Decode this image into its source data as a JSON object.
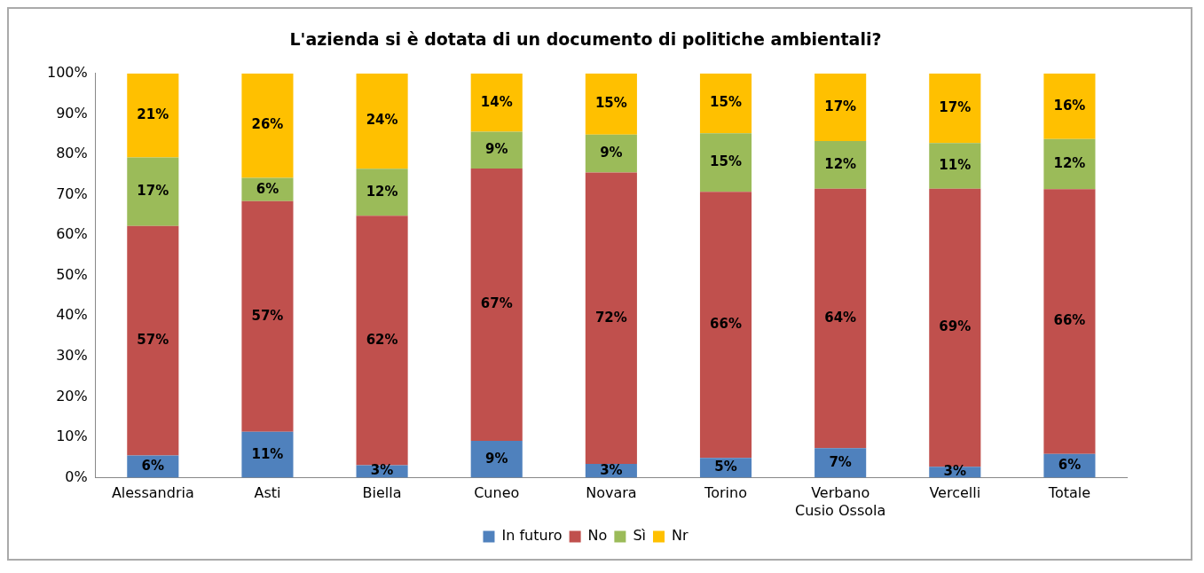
{
  "chart_data": {
    "type": "bar",
    "title": "L'azienda si è dotata di un documento di politiche ambientali?",
    "categories": [
      "Alessandria",
      "Asti",
      "Biella",
      "Cuneo",
      "Novara",
      "Torino",
      "Verbano Cusio Ossola",
      "Vercelli",
      "Totale"
    ],
    "stacked": true,
    "series": [
      {
        "name": "In futuro",
        "color": "#4f81bd",
        "values": [
          5.5,
          11.4,
          3.1,
          9.1,
          3.4,
          4.9,
          7.3,
          2.7,
          5.9
        ],
        "value_labels": [
          "6%",
          "11%",
          "3%",
          "9%",
          "3%",
          "5%",
          "7%",
          "3%",
          "6%"
        ]
      },
      {
        "name": "No",
        "color": "#c0504d",
        "values": [
          56.8,
          57.0,
          61.7,
          67.4,
          72.1,
          65.8,
          64.2,
          68.8,
          65.5
        ],
        "value_labels": [
          "57%",
          "57%",
          "62%",
          "67%",
          "72%",
          "66%",
          "64%",
          "69%",
          "66%"
        ]
      },
      {
        "name": "Sì",
        "color": "#9bbb59",
        "values": [
          16.9,
          5.8,
          11.6,
          9.1,
          9.4,
          14.5,
          11.8,
          11.3,
          12.4
        ],
        "value_labels": [
          "17%",
          "6%",
          "12%",
          "9%",
          "9%",
          "15%",
          "12%",
          "11%",
          "12%"
        ]
      },
      {
        "name": "Nr",
        "color": "#ffc000",
        "values": [
          20.8,
          25.8,
          23.6,
          14.4,
          15.1,
          14.8,
          16.7,
          17.2,
          16.2
        ],
        "value_labels": [
          "21%",
          "26%",
          "24%",
          "14%",
          "15%",
          "15%",
          "17%",
          "17%",
          "16%"
        ]
      }
    ],
    "ylim": [
      0,
      100
    ],
    "yticks": [
      {
        "value": 0,
        "label": "0%"
      },
      {
        "value": 10,
        "label": "10%"
      },
      {
        "value": 20,
        "label": "20%"
      },
      {
        "value": 30,
        "label": "30%"
      },
      {
        "value": 40,
        "label": "40%"
      },
      {
        "value": 50,
        "label": "50%"
      },
      {
        "value": 60,
        "label": "60%"
      },
      {
        "value": 70,
        "label": "70%"
      },
      {
        "value": 80,
        "label": "80%"
      },
      {
        "value": 90,
        "label": "90%"
      },
      {
        "value": 100,
        "label": "100%"
      }
    ],
    "grid": false,
    "legend": "bottom"
  }
}
